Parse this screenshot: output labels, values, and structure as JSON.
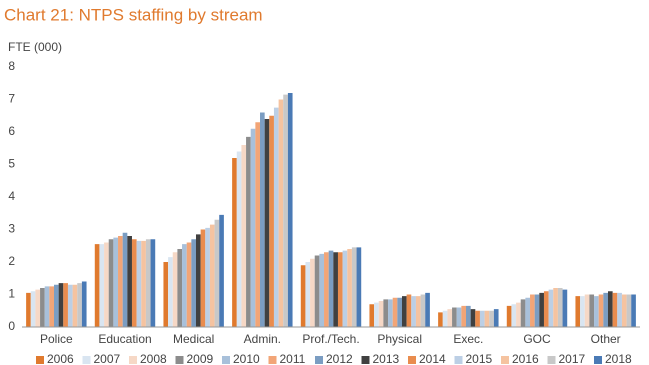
{
  "chart_data": {
    "type": "bar",
    "title": "Chart 21: NTPS staffing by stream",
    "y_label": "FTE (000)",
    "categories": [
      "Police",
      "Education",
      "Medical",
      "Admin.",
      "Prof./Tech.",
      "Physical",
      "Exec.",
      "GOC",
      "Other"
    ],
    "ylim": [
      0,
      8
    ],
    "yticks": [
      0,
      1,
      2,
      3,
      4,
      5,
      6,
      7,
      8
    ],
    "grid": false,
    "legend": "bottom",
    "series": [
      {
        "name": "2006",
        "color": "#e07a2e",
        "values": [
          1.05,
          2.55,
          2.0,
          5.2,
          1.9,
          0.7,
          0.45,
          0.65,
          0.95
        ]
      },
      {
        "name": "2007",
        "color": "#d9e5f1",
        "values": [
          1.1,
          2.55,
          2.15,
          5.4,
          2.0,
          0.75,
          0.5,
          0.7,
          0.95
        ]
      },
      {
        "name": "2008",
        "color": "#f6d8c6",
        "values": [
          1.15,
          2.6,
          2.3,
          5.6,
          2.1,
          0.8,
          0.55,
          0.75,
          1.0
        ]
      },
      {
        "name": "2009",
        "color": "#8c8c8c",
        "values": [
          1.2,
          2.7,
          2.4,
          5.85,
          2.2,
          0.85,
          0.6,
          0.85,
          1.0
        ]
      },
      {
        "name": "2010",
        "color": "#a8c0da",
        "values": [
          1.25,
          2.75,
          2.55,
          6.1,
          2.25,
          0.85,
          0.6,
          0.9,
          0.95
        ]
      },
      {
        "name": "2011",
        "color": "#f2a577",
        "values": [
          1.25,
          2.8,
          2.6,
          6.3,
          2.3,
          0.9,
          0.65,
          1.0,
          1.0
        ]
      },
      {
        "name": "2012",
        "color": "#7b9dc2",
        "values": [
          1.3,
          2.9,
          2.7,
          6.6,
          2.35,
          0.9,
          0.65,
          1.0,
          1.05
        ]
      },
      {
        "name": "2013",
        "color": "#404040",
        "values": [
          1.35,
          2.8,
          2.85,
          6.4,
          2.3,
          0.95,
          0.55,
          1.05,
          1.1
        ]
      },
      {
        "name": "2014",
        "color": "#e98c4e",
        "values": [
          1.35,
          2.7,
          3.0,
          6.5,
          2.3,
          1.0,
          0.5,
          1.1,
          1.05
        ]
      },
      {
        "name": "2015",
        "color": "#bccfe5",
        "values": [
          1.3,
          2.65,
          3.05,
          6.75,
          2.35,
          0.95,
          0.5,
          1.15,
          1.05
        ]
      },
      {
        "name": "2016",
        "color": "#f5c3a0",
        "values": [
          1.3,
          2.65,
          3.15,
          7.0,
          2.4,
          0.95,
          0.5,
          1.2,
          1.0
        ]
      },
      {
        "name": "2017",
        "color": "#c8c8c8",
        "values": [
          1.35,
          2.7,
          3.3,
          7.15,
          2.45,
          1.0,
          0.5,
          1.2,
          1.0
        ]
      },
      {
        "name": "2018",
        "color": "#4a7ab5",
        "values": [
          1.4,
          2.7,
          3.45,
          7.2,
          2.45,
          1.05,
          0.55,
          1.15,
          1.0
        ]
      }
    ]
  }
}
